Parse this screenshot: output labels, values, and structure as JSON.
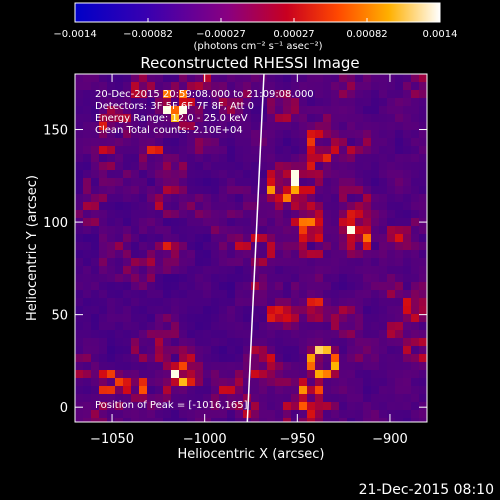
{
  "chart_data": {
    "type": "heatmap",
    "title": "Reconstructed RHESSI Image",
    "xlabel": "Heliocentric X (arcsec)",
    "ylabel": "Heliocentric Y (arcsec)",
    "xlim": [
      -1070,
      -880
    ],
    "ylim": [
      -8,
      180
    ],
    "xticks": [
      -1050,
      -1000,
      -950,
      -900
    ],
    "xtick_labels": [
      "−1050",
      "−1000",
      "−950",
      "−900"
    ],
    "yticks": [
      0,
      50,
      100,
      150
    ],
    "ytick_labels": [
      "0",
      "50",
      "100",
      "150"
    ],
    "colorbar": {
      "range": [
        -0.0014,
        0.0014
      ],
      "tick_labels": [
        "−0.0014",
        "−0.00082",
        "−0.00027",
        "0.00027",
        "0.00082",
        "0.0014"
      ],
      "unit_label": "(photons cm⁻² s⁻¹ asec⁻²)",
      "colormap": [
        "#0000c8",
        "#6a0090",
        "#b00020",
        "#ff5000",
        "#ffd800",
        "#ffffff"
      ]
    },
    "annotations": [
      "20-Dec-2015 20:59:08.000 to 21:09:08.000",
      "Detectors: 3F 5F 6F 7F 8F, Att 0",
      "Energy Range: 12.0 - 25.0 keV",
      "Clean     Total counts: 2.10E+04"
    ],
    "peak_label": "Position of Peak = [-1016,165]",
    "peak_position": [
      -1016,
      165
    ],
    "limb_line": [
      [
        -977,
        -8
      ],
      [
        -968,
        180
      ]
    ],
    "grid": false
  },
  "footer": {
    "timestamp": "21-Dec-2015 08:10"
  }
}
